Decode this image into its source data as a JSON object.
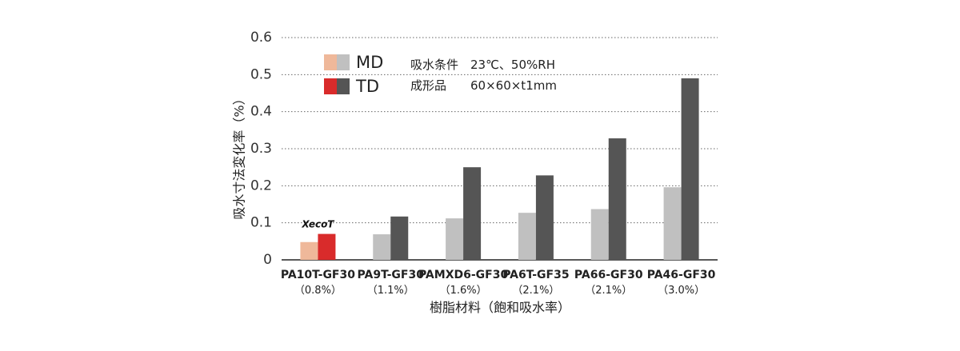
{
  "chart_data": {
    "type": "bar",
    "ylabel": "吸水寸法変化率（%）",
    "xlabel": "樹脂材料（飽和吸水率）",
    "ylim": [
      0,
      0.6
    ],
    "yticks": [
      "0",
      "0.1",
      "0.2",
      "0.3",
      "0.4",
      "0.5",
      "0.6"
    ],
    "grid": true,
    "categories": [
      "PA10T-GF30",
      "PA9T-GF30",
      "PAMXD6-GF30",
      "PA6T-GF35",
      "PA66-GF30",
      "PA46-GF30"
    ],
    "category_sublabels": [
      "（0.8%）",
      "（1.1%）",
      "（1.6%）",
      "（2.1%）",
      "（2.1%）",
      "（3.0%）"
    ],
    "series": [
      {
        "name": "MD",
        "values": [
          0.048,
          0.069,
          0.112,
          0.127,
          0.137,
          0.196
        ],
        "color": "#c0c0c0",
        "highlight_color": "#efb89a"
      },
      {
        "name": "TD",
        "values": [
          0.07,
          0.117,
          0.25,
          0.228,
          0.328,
          0.49
        ],
        "color": "#555555",
        "highlight_color": "#d92b2b"
      }
    ],
    "highlight_category_index": 0,
    "highlight_badge": "XecoT",
    "legend": {
      "placement": "top-left",
      "entries": [
        {
          "label": "MD",
          "colors": [
            "#efb89a",
            "#c0c0c0"
          ]
        },
        {
          "label": "TD",
          "colors": [
            "#d92b2b",
            "#555555"
          ]
        }
      ]
    },
    "annotations": [
      {
        "label": "吸水条件",
        "value": "23℃、50%RH"
      },
      {
        "label": "成形品",
        "value": "60×60×t1mm"
      }
    ]
  }
}
